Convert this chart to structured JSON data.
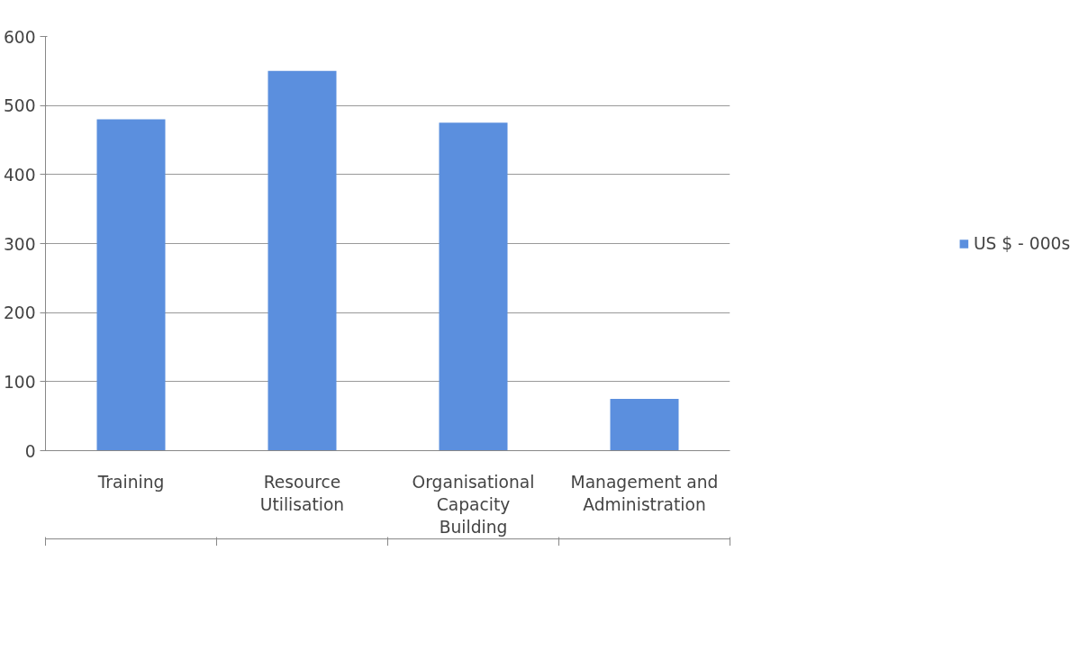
{
  "chart_data": {
    "type": "bar",
    "categories": [
      "Training",
      "Resource Utilisation",
      "Organisational Capacity Building",
      "Management and Administration"
    ],
    "series": [
      {
        "name": "US $ - 000s",
        "color": "#5b8fde",
        "values": [
          480,
          550,
          475,
          75
        ]
      }
    ],
    "ylim": [
      0,
      600
    ],
    "yticks": [
      0,
      100,
      200,
      300,
      400,
      500,
      600
    ],
    "grid": "y",
    "legend": "right"
  }
}
